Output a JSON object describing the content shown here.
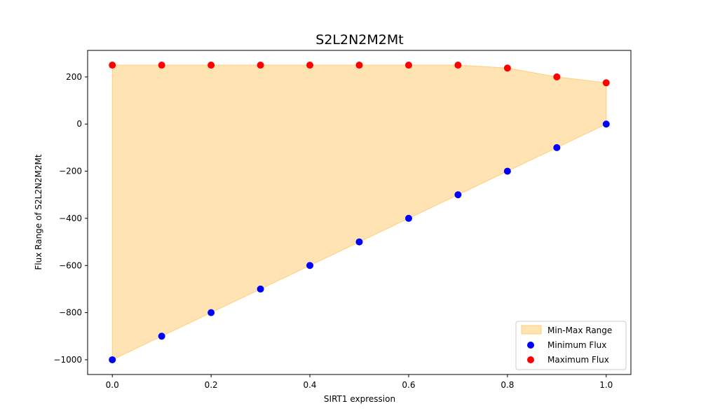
{
  "chart_data": {
    "type": "scatter",
    "title": "S2L2N2M2Mt",
    "xlabel": "SIRT1 expression",
    "ylabel": "Flux Range of S2L2N2M2Mt",
    "xlim": [
      -0.05,
      1.05
    ],
    "ylim": [
      -1062.5,
      312.5
    ],
    "x_ticks": [
      0.0,
      0.2,
      0.4,
      0.6,
      0.8,
      1.0
    ],
    "x_tick_labels": [
      "0.0",
      "0.2",
      "0.4",
      "0.6",
      "0.8",
      "1.0"
    ],
    "y_ticks": [
      200,
      0,
      -200,
      -400,
      -600,
      -800,
      -1000
    ],
    "y_tick_labels": [
      "200",
      "0",
      "−200",
      "−400",
      "−600",
      "−800",
      "−1000"
    ],
    "grid": false,
    "legend_position": "lower-right",
    "x": [
      0.0,
      0.1,
      0.2,
      0.3,
      0.4,
      0.5,
      0.6,
      0.7,
      0.8,
      0.9,
      1.0
    ],
    "fill": {
      "name": "Min-Max Range",
      "color": "#ffe3b3",
      "edge_color": "#ffcf7a"
    },
    "series": [
      {
        "name": "Minimum Flux",
        "color": "#0000ff",
        "values": [
          -1000,
          -900,
          -800,
          -700,
          -600,
          -500,
          -400,
          -300,
          -200,
          -100,
          0
        ]
      },
      {
        "name": "Maximum Flux",
        "color": "#ff0000",
        "values": [
          250,
          250,
          250,
          250,
          250,
          250,
          250,
          250,
          237.5,
          200,
          175
        ]
      }
    ]
  }
}
